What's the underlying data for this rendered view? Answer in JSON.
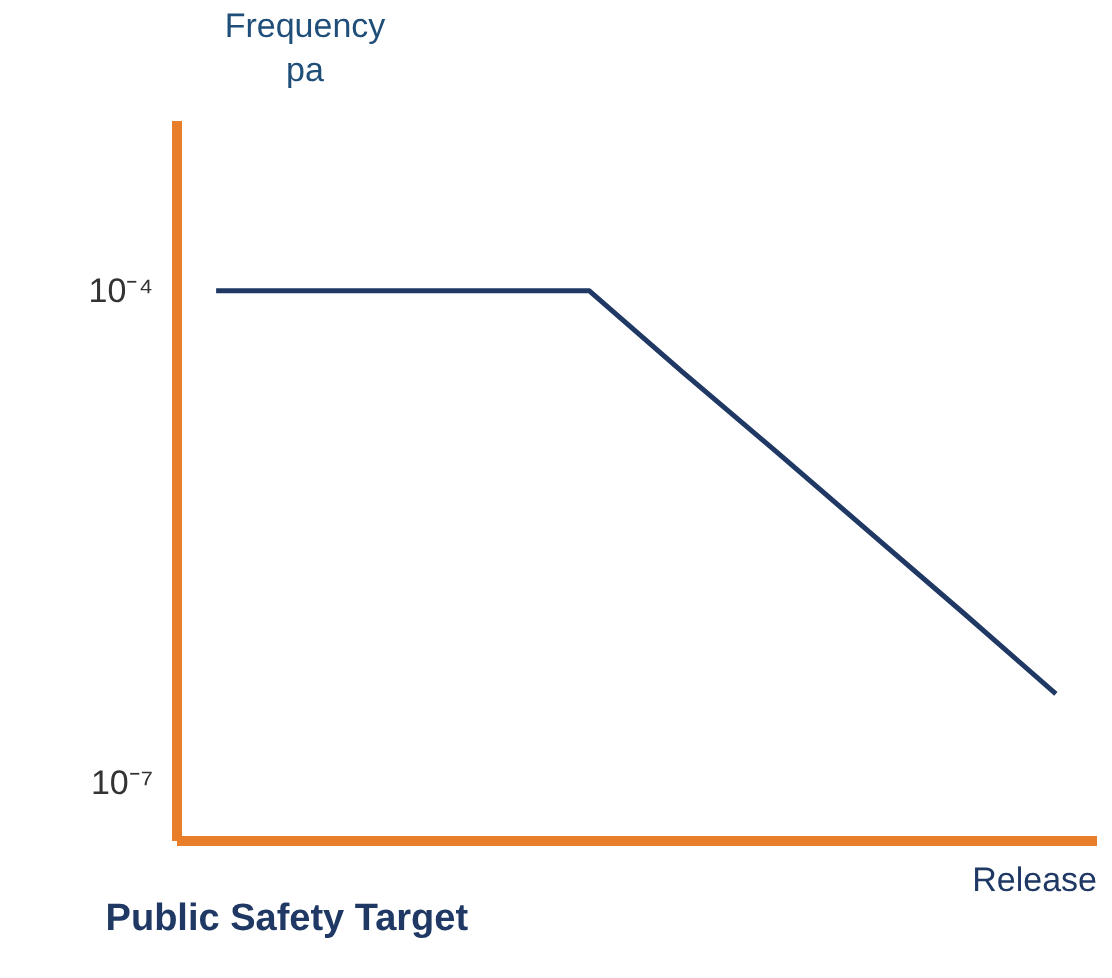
{
  "chart_data": {
    "type": "line",
    "title": "Public Safety Target",
    "xlabel": "Release",
    "ylabel": "Frequency pa",
    "categories": [
      null,
      null,
      null,
      null,
      null,
      null,
      null,
      null,
      null,
      null
    ],
    "series": [
      {
        "color": "#1f3864",
        "values": [
          0.0001,
          0.0001,
          0.0001,
          0.0001,
          0.0001,
          3.2e-05,
          1.05e-05,
          3.4e-06,
          1.1e-06,
          3.5e-07
        ]
      }
    ],
    "log": "y",
    "ylim": [
      4.5e-08,
      0.0011
    ],
    "yticks": [
      {
        "value": 0.0001,
        "label": "10⁻⁴"
      },
      {
        "value": 1e-07,
        "label": "10⁻⁷"
      }
    ],
    "tick_labels": "y",
    "grid": false,
    "marker": "none",
    "line_style": "solid"
  }
}
